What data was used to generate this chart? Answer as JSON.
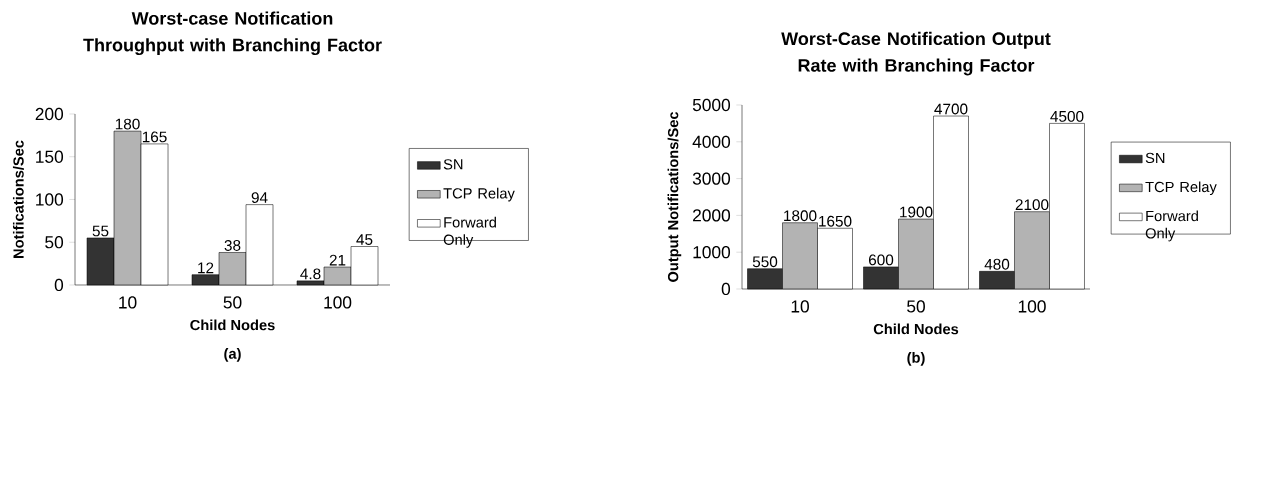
{
  "chart_data": [
    {
      "type": "bar",
      "title": "Worst-case Notification Throughput with Branching Factor",
      "xlabel": "Child Nodes",
      "ylabel": "Notifications/Sec",
      "annotations": [
        "(a)"
      ],
      "categories": [
        "10",
        "50",
        "100"
      ],
      "series": [
        {
          "name": "SN",
          "color": "#333333",
          "values": [
            55,
            12,
            4.8
          ]
        },
        {
          "name": "TCP Relay",
          "color": "#b3b3b3",
          "values": [
            180,
            38,
            21
          ]
        },
        {
          "name": "Forward Only",
          "color": "#ffffff",
          "values": [
            165,
            94,
            45
          ]
        }
      ],
      "ylim": [
        0,
        200
      ],
      "yticks": [
        0,
        50,
        100,
        150,
        200
      ],
      "data_labels": true,
      "legend": "right"
    },
    {
      "type": "bar",
      "title": "Worst-Case Notification Output Rate with Branching Factor",
      "xlabel": "Child Nodes",
      "ylabel": "Output Notifications/Sec",
      "annotations": [
        "(b)"
      ],
      "categories": [
        "10",
        "50",
        "100"
      ],
      "series": [
        {
          "name": "SN",
          "color": "#333333",
          "values": [
            550,
            600,
            480
          ]
        },
        {
          "name": "TCP Relay",
          "color": "#b3b3b3",
          "values": [
            1800,
            1900,
            2100
          ]
        },
        {
          "name": "Forward Only",
          "color": "#ffffff",
          "values": [
            1650,
            4700,
            4500
          ]
        }
      ],
      "ylim": [
        0,
        5000
      ],
      "yticks": [
        0,
        1000,
        2000,
        3000,
        4000,
        5000
      ],
      "data_labels": true,
      "legend": "right"
    }
  ]
}
